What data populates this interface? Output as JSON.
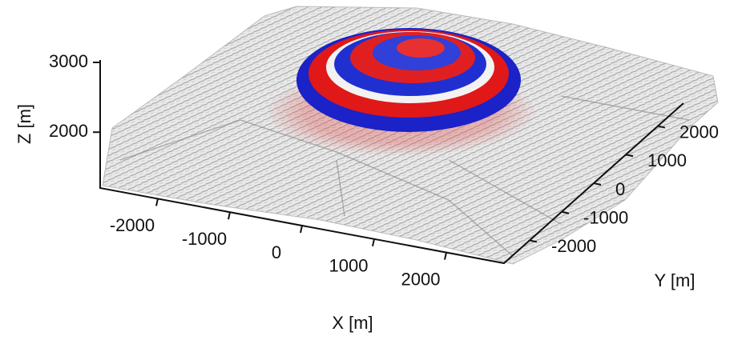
{
  "chart_data": {
    "type": "surface3d",
    "xlabel": "X [m]",
    "ylabel": "Y [m]",
    "zlabel": "Z [m]",
    "xlim": [
      -2800,
      2800
    ],
    "ylim": [
      -2800,
      2800
    ],
    "zlim": [
      1200,
      3000
    ],
    "xticks": [
      -2000,
      -1000,
      0,
      1000,
      2000
    ],
    "yticks": [
      -2000,
      -1000,
      0,
      1000,
      2000
    ],
    "zticks": [
      2000,
      3000
    ]
  }
}
